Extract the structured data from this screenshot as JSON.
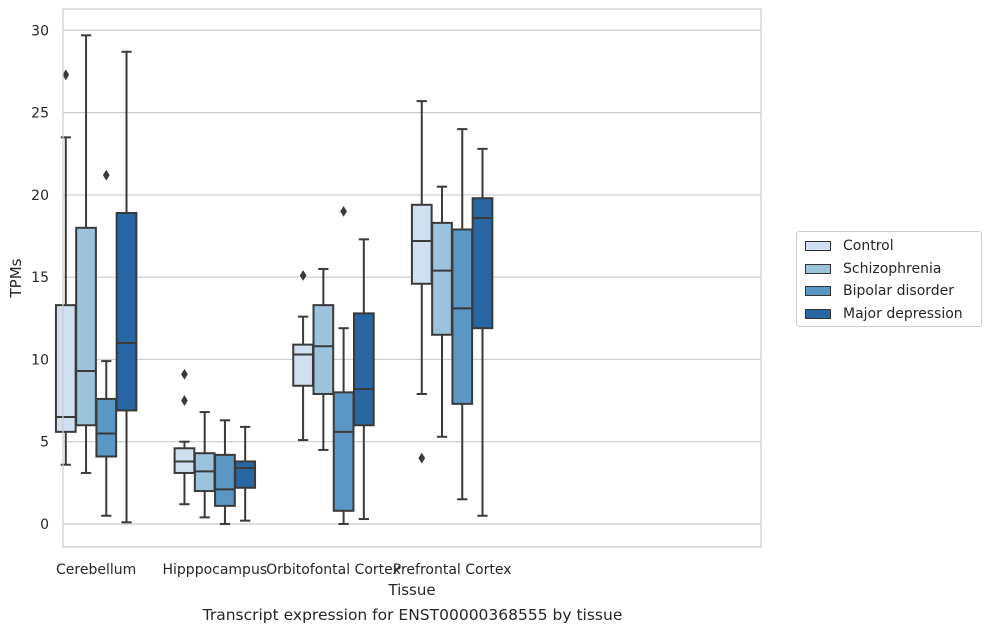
{
  "chart_data": {
    "type": "box",
    "xlabel": "Tissue",
    "ylabel": "TPMs",
    "ylim": [
      -1.4,
      31.3
    ],
    "yticks": [
      0,
      5,
      10,
      15,
      20,
      25,
      30
    ],
    "grid": true,
    "legend_position": "right",
    "categories": [
      "Cerebellum",
      "Hipppocampus",
      "Orbitofontal Cortex",
      "Prefrontal Cortex"
    ],
    "series": [
      {
        "name": "Control",
        "color": "#d1e0f0",
        "boxes": [
          {
            "whislo": 3.6,
            "q1": 5.6,
            "med": 6.5,
            "q3": 13.3,
            "whishi": 23.5,
            "fliers": [
              27.3
            ]
          },
          {
            "whislo": 1.2,
            "q1": 3.1,
            "med": 3.8,
            "q3": 4.6,
            "whishi": 5.0,
            "fliers": [
              7.5,
              9.1
            ]
          },
          {
            "whislo": 5.1,
            "q1": 8.4,
            "med": 10.3,
            "q3": 10.9,
            "whishi": 12.6,
            "fliers": [
              15.1
            ]
          },
          {
            "whislo": 7.9,
            "q1": 14.6,
            "med": 17.2,
            "q3": 19.4,
            "whishi": 25.7,
            "fliers": [
              4.0
            ]
          }
        ]
      },
      {
        "name": "Schizophrenia",
        "color": "#9cc2dc",
        "boxes": [
          {
            "whislo": 3.1,
            "q1": 6.0,
            "med": 9.3,
            "q3": 18.0,
            "whishi": 29.7,
            "fliers": []
          },
          {
            "whislo": 0.4,
            "q1": 2.0,
            "med": 3.2,
            "q3": 4.3,
            "whishi": 6.8,
            "fliers": []
          },
          {
            "whislo": 4.5,
            "q1": 7.9,
            "med": 10.8,
            "q3": 13.3,
            "whishi": 15.5,
            "fliers": []
          },
          {
            "whislo": 5.3,
            "q1": 11.5,
            "med": 15.4,
            "q3": 18.3,
            "whishi": 20.5,
            "fliers": []
          }
        ]
      },
      {
        "name": "Bipolar disorder",
        "color": "#5a97c4",
        "boxes": [
          {
            "whislo": 0.5,
            "q1": 4.1,
            "med": 5.5,
            "q3": 7.6,
            "whishi": 9.9,
            "fliers": [
              21.2
            ]
          },
          {
            "whislo": 0.0,
            "q1": 1.1,
            "med": 2.1,
            "q3": 4.2,
            "whishi": 6.3,
            "fliers": []
          },
          {
            "whislo": 0.0,
            "q1": 0.8,
            "med": 5.6,
            "q3": 8.0,
            "whishi": 11.9,
            "fliers": [
              19.0
            ]
          },
          {
            "whislo": 1.5,
            "q1": 7.3,
            "med": 13.1,
            "q3": 17.9,
            "whishi": 24.0,
            "fliers": []
          }
        ]
      },
      {
        "name": "Major depression",
        "color": "#2866a3",
        "boxes": [
          {
            "whislo": 0.1,
            "q1": 6.9,
            "med": 11.0,
            "q3": 18.9,
            "whishi": 28.7,
            "fliers": []
          },
          {
            "whislo": 0.2,
            "q1": 2.2,
            "med": 3.4,
            "q3": 3.8,
            "whishi": 5.9,
            "fliers": []
          },
          {
            "whislo": 0.3,
            "q1": 6.0,
            "med": 8.2,
            "q3": 12.8,
            "whishi": 17.3,
            "fliers": []
          },
          {
            "whislo": 0.5,
            "q1": 11.9,
            "med": 18.6,
            "q3": 19.8,
            "whishi": 22.8,
            "fliers": []
          }
        ]
      }
    ]
  },
  "caption": "Transcript expression for ENST00000368555 by tissue"
}
